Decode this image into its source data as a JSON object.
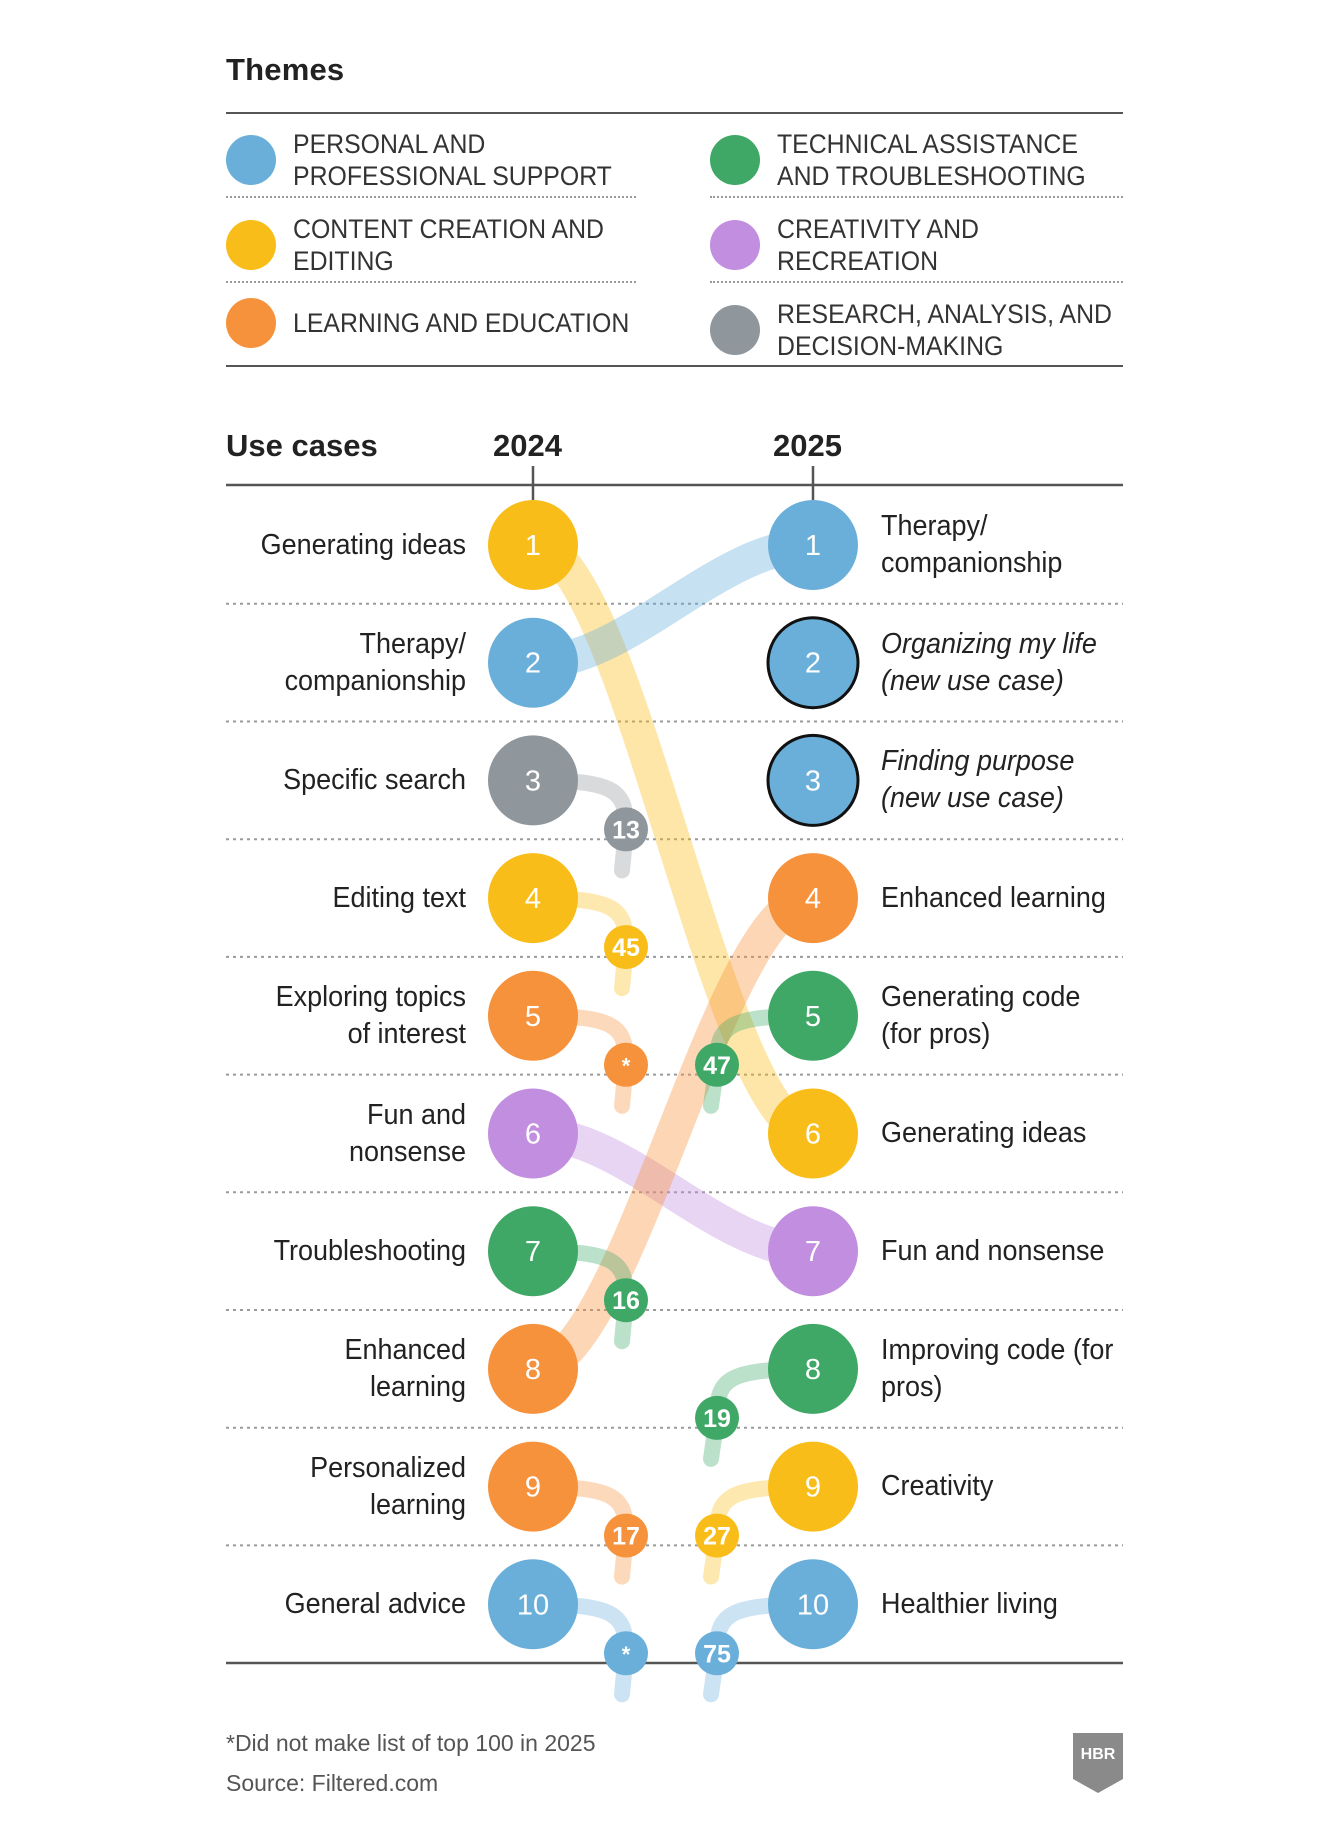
{
  "colors": {
    "personal": "#6aafd9",
    "technical": "#3fa866",
    "content": "#f9bd19",
    "creativity": "#c28ee0",
    "learning": "#f6923c",
    "research": "#8f969c"
  },
  "themes": {
    "title": "Themes",
    "items": [
      {
        "key": "personal",
        "label": "PERSONAL AND PROFESSIONAL SUPPORT",
        "icon": "blue-circle"
      },
      {
        "key": "technical",
        "label": "TECHNICAL ASSISTANCE AND TROUBLESHOOTING",
        "icon": "green-circle"
      },
      {
        "key": "content",
        "label": "CONTENT CREATION AND EDITING",
        "icon": "yellow-circle"
      },
      {
        "key": "creativity",
        "label": "CREATIVITY AND RECREATION",
        "icon": "purple-circle"
      },
      {
        "key": "learning",
        "label": "LEARNING AND EDUCATION",
        "icon": "orange-circle"
      },
      {
        "key": "research",
        "label": "RESEARCH, ANALYSIS, AND DECISION-MAKING",
        "icon": "gray-circle"
      }
    ]
  },
  "chart_data": {
    "type": "slope",
    "title": "Use cases",
    "columns": [
      "2024",
      "2025"
    ],
    "rows_2024": [
      {
        "rank": 1,
        "label": "Generating ideas",
        "theme": "content",
        "rank_2025": 6
      },
      {
        "rank": 2,
        "label": "Therapy/ companionship",
        "theme": "personal",
        "rank_2025": 1
      },
      {
        "rank": 3,
        "label": "Specific search",
        "theme": "research",
        "rank_2025": "13"
      },
      {
        "rank": 4,
        "label": "Editing text",
        "theme": "content",
        "rank_2025": "45"
      },
      {
        "rank": 5,
        "label": "Exploring topics of interest",
        "theme": "learning",
        "rank_2025": "*"
      },
      {
        "rank": 6,
        "label": "Fun and nonsense",
        "theme": "creativity",
        "rank_2025": 7
      },
      {
        "rank": 7,
        "label": "Troubleshooting",
        "theme": "technical",
        "rank_2025": "16"
      },
      {
        "rank": 8,
        "label": "Enhanced learning",
        "theme": "learning",
        "rank_2025": 4
      },
      {
        "rank": 9,
        "label": "Personalized learning",
        "theme": "learning",
        "rank_2025": "17"
      },
      {
        "rank": 10,
        "label": "General advice",
        "theme": "personal",
        "rank_2025": "*"
      }
    ],
    "rows_2025": [
      {
        "rank": 1,
        "label": "Therapy/ companionship",
        "theme": "personal",
        "new": false
      },
      {
        "rank": 2,
        "label": "Organizing my life (new use case)",
        "theme": "personal",
        "new": true
      },
      {
        "rank": 3,
        "label": "Finding purpose (new use case)",
        "theme": "personal",
        "new": true
      },
      {
        "rank": 4,
        "label": "Enhanced learning",
        "theme": "learning",
        "new": false,
        "rank_2024": 8
      },
      {
        "rank": 5,
        "label": "Generating code (for pros)",
        "theme": "technical",
        "new": false,
        "rank_2024": "47"
      },
      {
        "rank": 6,
        "label": "Generating ideas",
        "theme": "content",
        "new": false,
        "rank_2024": 1
      },
      {
        "rank": 7,
        "label": "Fun and nonsense",
        "theme": "creativity",
        "new": false,
        "rank_2024": 6
      },
      {
        "rank": 8,
        "label": "Improving code (for pros)",
        "theme": "technical",
        "new": false,
        "rank_2024": "19"
      },
      {
        "rank": 9,
        "label": "Creativity",
        "theme": "content",
        "new": false,
        "rank_2024": "27"
      },
      {
        "rank": 10,
        "label": "Healthier living",
        "theme": "personal",
        "new": false,
        "rank_2024": "75"
      }
    ],
    "moved_out_labels": [
      {
        "from_rank": 3,
        "value": "13",
        "theme": "research"
      },
      {
        "from_rank": 4,
        "value": "45",
        "theme": "content"
      },
      {
        "from_rank": 5,
        "value": "*",
        "theme": "learning"
      },
      {
        "from_rank": 7,
        "value": "16",
        "theme": "technical"
      },
      {
        "from_rank": 9,
        "value": "17",
        "theme": "learning"
      },
      {
        "from_rank": 10,
        "value": "*",
        "theme": "personal"
      }
    ],
    "moved_in_labels": [
      {
        "to_rank": 5,
        "value": "47",
        "theme": "technical"
      },
      {
        "to_rank": 8,
        "value": "19",
        "theme": "technical"
      },
      {
        "to_rank": 9,
        "value": "27",
        "theme": "content"
      },
      {
        "to_rank": 10,
        "value": "75",
        "theme": "personal"
      }
    ]
  },
  "footer": {
    "note": "*Did not make list of top 100 in 2025",
    "source": "Source: Filtered.com",
    "logo": "HBR"
  }
}
